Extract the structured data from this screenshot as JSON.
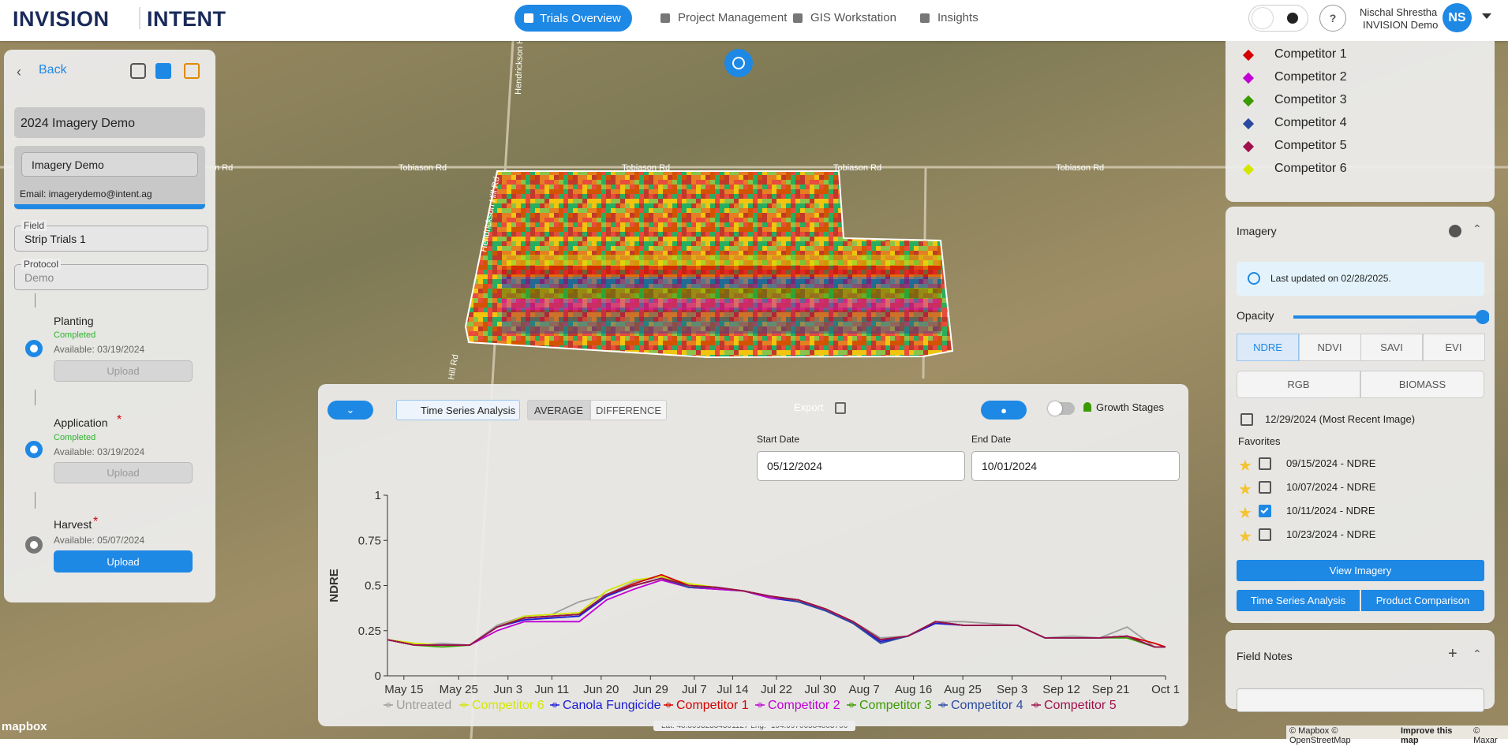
{
  "header": {
    "brand_1": "INVISION",
    "brand_2": "INTENT",
    "nav": [
      "Trials Overview",
      "Project Management",
      "GIS Workstation",
      "Insights"
    ],
    "help": "?",
    "user_name": "Nischal Shrestha",
    "user_org": "INVISION Demo",
    "initials": "NS"
  },
  "left_panel": {
    "back": "Back",
    "project": "2024 Imagery Demo",
    "account": "Imagery Demo",
    "email": "Email: imagerydemo@intent.ag",
    "field_label": "Field",
    "field_value": "Strip Trials 1",
    "protocol_label": "Protocol",
    "protocol_value": "Demo",
    "steps": [
      {
        "name": "Planting",
        "status": "Completed",
        "available": "Available: 03/19/2024",
        "button": "Upload"
      },
      {
        "name": "Application",
        "required": "*",
        "status": "Completed",
        "available": "Available: 03/19/2024",
        "button": "Upload"
      },
      {
        "name": "Harvest",
        "required": "*",
        "available": "Available: 05/07/2024",
        "button": "Upload"
      }
    ]
  },
  "map": {
    "roads": [
      "n Rd",
      "Tobiason Rd",
      "Tobiason Rd",
      "Tobiason Rd",
      "Tobiason Rd",
      "Hendrickson Hill Rd",
      "Hendrickson Hill Rd",
      "Hill Rd"
    ],
    "coords": "Lat: 48.80932384301127 Lng: -104.09706584803766",
    "mapbox": "mapbox",
    "attribution": "© Mapbox © OpenStreetMap",
    "improve": "Improve this map",
    "maxar": "© Maxar"
  },
  "right_panel": {
    "legend": [
      {
        "name": "Competitor 1",
        "color": "#d40000"
      },
      {
        "name": "Competitor 2",
        "color": "#c000d4"
      },
      {
        "name": "Competitor 3",
        "color": "#3a9a00"
      },
      {
        "name": "Competitor 4",
        "color": "#2a4aa0"
      },
      {
        "name": "Competitor 5",
        "color": "#a0104a"
      },
      {
        "name": "Competitor 6",
        "color": "#d4e600"
      }
    ],
    "imagery": {
      "title": "Imagery",
      "info": "Last updated on 02/28/2025.",
      "opacity_label": "Opacity",
      "opacity": 1,
      "indices": [
        "NDRE",
        "NDVI",
        "SAVI",
        "EVI"
      ],
      "active_index": 0,
      "layers": [
        "RGB",
        "BIOMASS"
      ],
      "recent": "12/29/2024 (Most Recent Image)",
      "favorites_label": "Favorites",
      "favorites": [
        {
          "label": "09/15/2024 - NDRE",
          "checked": false
        },
        {
          "label": "10/07/2024 - NDRE",
          "checked": false
        },
        {
          "label": "10/11/2024 - NDRE",
          "checked": true
        },
        {
          "label": "10/23/2024 - NDRE",
          "checked": false
        }
      ],
      "view": "View Imagery",
      "tsa": "Time Series Analysis",
      "compare": "Product Comparison"
    },
    "field_notes": "Field Notes"
  },
  "chart_panel": {
    "tsa": "Time Series Analysis",
    "average": "AVERAGE",
    "difference": "DIFFERENCE",
    "export": "Export",
    "growth": "Growth Stages",
    "start_label": "Start Date",
    "start": "05/12/2024",
    "end_label": "End Date",
    "end": "10/01/2024",
    "chart_data": {
      "type": "line",
      "y_label": "NDRE",
      "x": [
        "May 12",
        "May 17",
        "May 22",
        "May 27",
        "Jun 1",
        "Jun 6",
        "Jun 11",
        "Jun 16",
        "Jun 21",
        "Jun 26",
        "Jul 1",
        "Jul 6",
        "Jul 11",
        "Jul 16",
        "Jul 21",
        "Jul 26",
        "Jul 31",
        "Aug 5",
        "Aug 10",
        "Aug 15",
        "Aug 20",
        "Aug 25",
        "Aug 30",
        "Sep 4",
        "Sep 9",
        "Sep 14",
        "Sep 19",
        "Sep 24",
        "Sep 29",
        "Oct 1"
      ],
      "xlim": [
        "May 12",
        "Oct 1"
      ],
      "xticks": [
        "May 15",
        "May 25",
        "Jun 3",
        "Jun 11",
        "Jun 20",
        "Jun 29",
        "Jul 7",
        "Jul 14",
        "Jul 22",
        "Jul 30",
        "Aug 7",
        "Aug 16",
        "Aug 25",
        "Sep 3",
        "Sep 12",
        "Sep 21",
        "Oct 1"
      ],
      "ylim": [
        0,
        1
      ],
      "yticks": [
        0,
        0.25,
        0.5,
        0.75,
        1
      ],
      "series": [
        {
          "name": "Untreated",
          "color": "#9e9e9e",
          "values": [
            0.2,
            0.17,
            0.18,
            0.17,
            0.28,
            0.33,
            0.34,
            0.41,
            0.45,
            0.52,
            0.55,
            0.5,
            0.49,
            0.47,
            0.44,
            0.42,
            0.37,
            0.3,
            0.21,
            0.22,
            0.3,
            0.3,
            0.29,
            0.28,
            0.21,
            0.22,
            0.21,
            0.27,
            0.16,
            0.16
          ]
        },
        {
          "name": "Competitor 6",
          "color": "#d4e600",
          "values": [
            0.2,
            0.18,
            0.17,
            0.17,
            0.27,
            0.33,
            0.34,
            0.35,
            0.47,
            0.53,
            0.55,
            0.51,
            0.49,
            0.47,
            0.44,
            0.42,
            0.37,
            0.3,
            0.2,
            0.22,
            0.3,
            0.28,
            0.28,
            0.28,
            0.21,
            0.21,
            0.21,
            0.22,
            0.16,
            0.16
          ]
        },
        {
          "name": "Canola Fungicide",
          "color": "#1a1ad4",
          "values": [
            0.2,
            0.17,
            0.17,
            0.17,
            0.27,
            0.31,
            0.32,
            0.33,
            0.44,
            0.5,
            0.54,
            0.49,
            0.48,
            0.47,
            0.43,
            0.41,
            0.36,
            0.29,
            0.19,
            0.22,
            0.29,
            0.28,
            0.28,
            0.28,
            0.21,
            0.21,
            0.21,
            0.22,
            0.16,
            0.16
          ]
        },
        {
          "name": "Competitor 1",
          "color": "#d40000",
          "values": [
            0.2,
            0.17,
            0.17,
            0.17,
            0.27,
            0.32,
            0.33,
            0.34,
            0.45,
            0.51,
            0.56,
            0.5,
            0.49,
            0.47,
            0.44,
            0.42,
            0.37,
            0.3,
            0.2,
            0.22,
            0.3,
            0.28,
            0.28,
            0.28,
            0.21,
            0.21,
            0.21,
            0.22,
            0.18,
            0.16
          ]
        },
        {
          "name": "Competitor 2",
          "color": "#c000d4",
          "values": [
            0.2,
            0.17,
            0.17,
            0.17,
            0.25,
            0.3,
            0.3,
            0.3,
            0.42,
            0.48,
            0.53,
            0.49,
            0.48,
            0.47,
            0.43,
            0.42,
            0.36,
            0.3,
            0.2,
            0.22,
            0.3,
            0.28,
            0.28,
            0.28,
            0.21,
            0.21,
            0.21,
            0.22,
            0.16,
            0.16
          ]
        },
        {
          "name": "Competitor 3",
          "color": "#3a9a00",
          "values": [
            0.2,
            0.17,
            0.16,
            0.17,
            0.27,
            0.32,
            0.33,
            0.34,
            0.45,
            0.5,
            0.54,
            0.5,
            0.49,
            0.47,
            0.44,
            0.42,
            0.37,
            0.3,
            0.2,
            0.22,
            0.3,
            0.28,
            0.28,
            0.28,
            0.21,
            0.21,
            0.21,
            0.21,
            0.16,
            0.16
          ]
        },
        {
          "name": "Competitor 4",
          "color": "#2a4aa0",
          "values": [
            0.2,
            0.17,
            0.17,
            0.17,
            0.27,
            0.32,
            0.33,
            0.34,
            0.45,
            0.5,
            0.54,
            0.49,
            0.49,
            0.47,
            0.44,
            0.41,
            0.36,
            0.29,
            0.18,
            0.22,
            0.3,
            0.28,
            0.28,
            0.28,
            0.21,
            0.21,
            0.21,
            0.22,
            0.16,
            0.16
          ]
        },
        {
          "name": "Competitor 5",
          "color": "#a0104a",
          "values": [
            0.2,
            0.17,
            0.17,
            0.17,
            0.27,
            0.32,
            0.33,
            0.34,
            0.45,
            0.5,
            0.54,
            0.5,
            0.49,
            0.47,
            0.44,
            0.42,
            0.37,
            0.3,
            0.2,
            0.22,
            0.3,
            0.28,
            0.28,
            0.28,
            0.21,
            0.21,
            0.21,
            0.22,
            0.16,
            0.16
          ]
        }
      ]
    }
  }
}
